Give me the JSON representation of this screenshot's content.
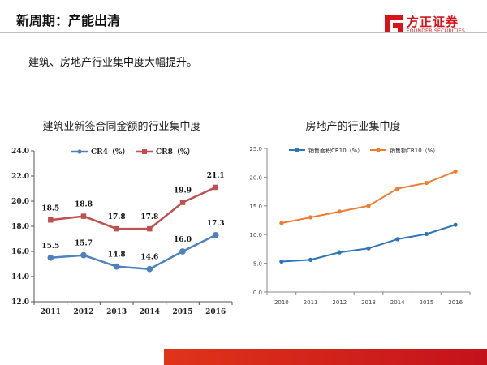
{
  "header": {
    "title": "新周期：产能出清",
    "logo_cn": "方正证券",
    "logo_en": "FOUNDER SECURITIES",
    "brand_color": "#d7141a"
  },
  "subtitle": "建筑、房地产行业集中度大幅提升。",
  "chart_data": [
    {
      "type": "line",
      "title": "建筑业新签合同金额的行业集中度",
      "xlabel": "",
      "ylabel": "",
      "categories": [
        "2011",
        "2012",
        "2013",
        "2014",
        "2015",
        "2016"
      ],
      "y_ticks": [
        "12.0",
        "14.0",
        "16.0",
        "18.0",
        "20.0",
        "22.0",
        "24.0"
      ],
      "ylim": [
        12,
        24
      ],
      "grid": false,
      "legend": "top",
      "data_labels": true,
      "series": [
        {
          "name": "CR4（%）",
          "color": "#4f81bd",
          "marker": "circle",
          "values": [
            15.5,
            15.7,
            14.8,
            14.6,
            16.0,
            17.3
          ],
          "labels": [
            "15.5",
            "15.7",
            "14.8",
            "14.6",
            "16.0",
            "17.3"
          ]
        },
        {
          "name": "CR8（%）",
          "color": "#c0504d",
          "marker": "square",
          "values": [
            18.5,
            18.8,
            17.8,
            17.8,
            19.9,
            21.1
          ],
          "labels": [
            "18.5",
            "18.8",
            "17.8",
            "17.8",
            "19.9",
            "21.1"
          ]
        }
      ]
    },
    {
      "type": "line",
      "title": "房地产的行业集中度",
      "xlabel": "",
      "ylabel": "",
      "categories": [
        "2010",
        "2011",
        "2012",
        "2013",
        "2014",
        "2015",
        "2016"
      ],
      "y_ticks": [
        "0.0",
        "5.0",
        "10.0",
        "15.0",
        "20.0",
        "25.0"
      ],
      "ylim": [
        0,
        25
      ],
      "grid": false,
      "legend": "top",
      "data_labels": false,
      "series": [
        {
          "name": "销售面积CR10（%）",
          "color": "#2e75b6",
          "marker": "circle",
          "values": [
            5.3,
            5.6,
            6.9,
            7.6,
            9.2,
            10.1,
            11.7
          ]
        },
        {
          "name": "销售额CR10（%）",
          "color": "#ed7d31",
          "marker": "circle",
          "values": [
            12.0,
            13.0,
            14.0,
            15.0,
            18.0,
            19.0,
            21.0
          ]
        }
      ]
    }
  ]
}
